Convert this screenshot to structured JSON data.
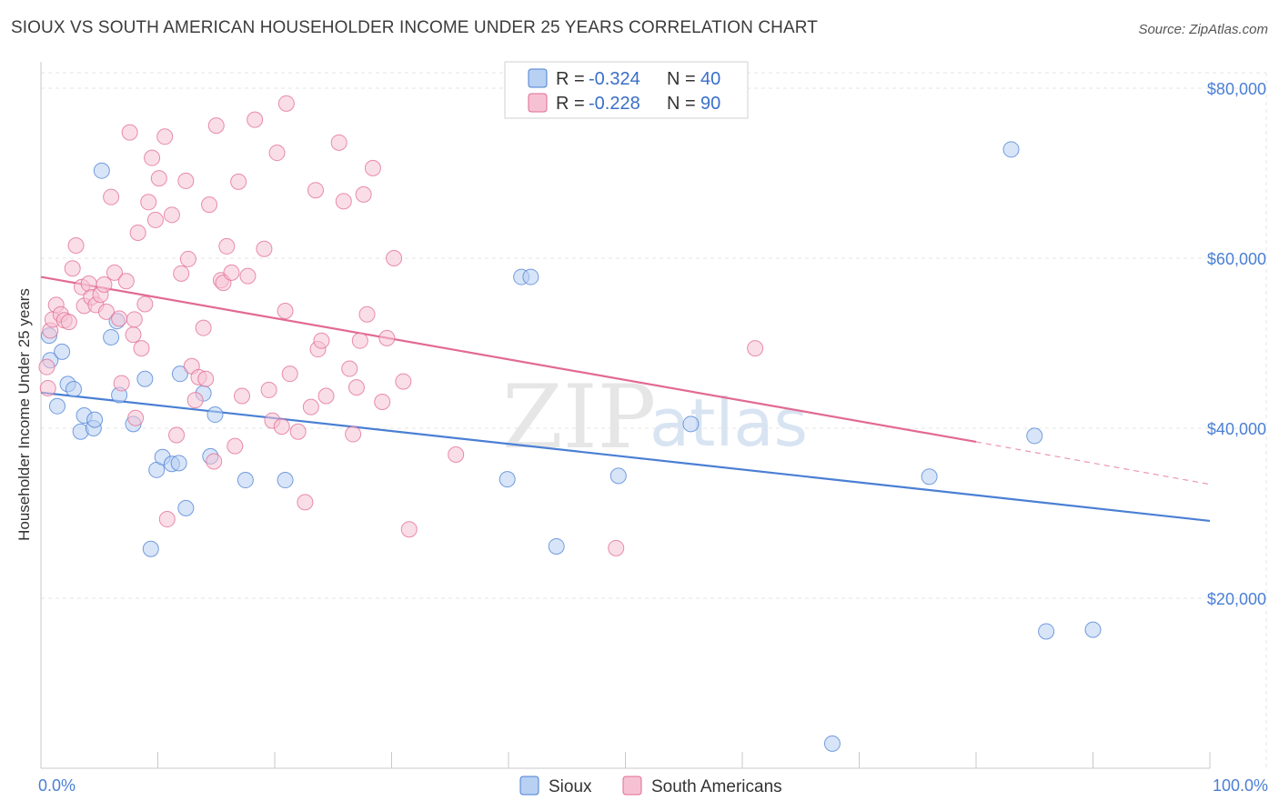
{
  "title": "SIOUX VS SOUTH AMERICAN HOUSEHOLDER INCOME UNDER 25 YEARS CORRELATION CHART",
  "source": "Source: ZipAtlas.com",
  "watermark": {
    "zip": "ZIP",
    "atlas": "atlas"
  },
  "colors": {
    "sioux": "#4a7fd4",
    "sioux_fill": "#b8d0f2",
    "south_americans": "#e26a92",
    "south_americans_fill": "#f6c2d3",
    "grid": "#e4e4e4",
    "tick_label": "#4a7fd4"
  },
  "legend": {
    "rows": [
      {
        "r_label": "R = ",
        "r_value": "-0.324",
        "n_label": "N = ",
        "n_value": "40"
      },
      {
        "r_label": "R = ",
        "r_value": "-0.228",
        "n_label": "N = ",
        "n_value": "90"
      }
    ]
  },
  "bottom_legend": [
    "Sioux",
    "South Americans"
  ],
  "chart_data": {
    "type": "scatter",
    "title": "SIOUX VS SOUTH AMERICAN HOUSEHOLDER INCOME UNDER 25 YEARS CORRELATION CHART",
    "xlabel": "",
    "ylabel": "Householder Income Under 25 years",
    "xlim": [
      0,
      100
    ],
    "ylim": [
      0,
      83000
    ],
    "x_tick_labels": [
      "0.0%",
      "100.0%"
    ],
    "y_ticks": [
      20000,
      40000,
      60000,
      80000
    ],
    "y_tick_labels": [
      "$20,000",
      "$40,000",
      "$60,000",
      "$80,000"
    ],
    "grid": true,
    "legend_position": "top-center",
    "series": [
      {
        "name": "Sioux",
        "r": -0.324,
        "n": 40,
        "trend": {
          "x": [
            0,
            100
          ],
          "y": [
            44200,
            29100
          ]
        },
        "points": [
          [
            0.7,
            50900
          ],
          [
            0.8,
            48000
          ],
          [
            1.4,
            42600
          ],
          [
            1.8,
            49000
          ],
          [
            2.3,
            45200
          ],
          [
            2.8,
            44600
          ],
          [
            3.4,
            39600
          ],
          [
            3.7,
            41500
          ],
          [
            4.5,
            40000
          ],
          [
            4.6,
            41000
          ],
          [
            5.2,
            70300
          ],
          [
            6.0,
            50700
          ],
          [
            6.5,
            52600
          ],
          [
            6.7,
            43900
          ],
          [
            7.9,
            40500
          ],
          [
            8.9,
            45800
          ],
          [
            9.4,
            25800
          ],
          [
            9.9,
            35100
          ],
          [
            10.4,
            36600
          ],
          [
            11.2,
            35800
          ],
          [
            11.8,
            35900
          ],
          [
            11.9,
            46400
          ],
          [
            12.4,
            30600
          ],
          [
            13.9,
            44100
          ],
          [
            14.5,
            36700
          ],
          [
            14.9,
            41600
          ],
          [
            17.5,
            33900
          ],
          [
            20.9,
            33900
          ],
          [
            39.9,
            34000
          ],
          [
            41.1,
            57800
          ],
          [
            41.9,
            57800
          ],
          [
            44.1,
            26100
          ],
          [
            49.4,
            34400
          ],
          [
            55.6,
            40500
          ],
          [
            76.0,
            34300
          ],
          [
            83.0,
            72800
          ],
          [
            85.0,
            39100
          ],
          [
            86.0,
            16100
          ],
          [
            90.0,
            16300
          ],
          [
            67.7,
            2900
          ]
        ]
      },
      {
        "name": "South Americans",
        "r": -0.228,
        "n": 90,
        "trend": {
          "x": [
            0,
            80
          ],
          "y": [
            57800,
            38400
          ]
        },
        "trend_dashed": {
          "x": [
            80,
            100
          ],
          "y": [
            38400,
            33400
          ]
        },
        "points": [
          [
            0.5,
            47200
          ],
          [
            0.6,
            44700
          ],
          [
            0.8,
            51500
          ],
          [
            1.0,
            52800
          ],
          [
            1.3,
            54500
          ],
          [
            1.7,
            53400
          ],
          [
            2.0,
            52700
          ],
          [
            2.4,
            52500
          ],
          [
            2.7,
            58800
          ],
          [
            3.0,
            61500
          ],
          [
            3.5,
            56600
          ],
          [
            3.7,
            54400
          ],
          [
            4.1,
            57000
          ],
          [
            4.3,
            55400
          ],
          [
            4.7,
            54500
          ],
          [
            5.1,
            55700
          ],
          [
            5.4,
            56900
          ],
          [
            5.6,
            53700
          ],
          [
            6.0,
            67200
          ],
          [
            6.3,
            58300
          ],
          [
            6.7,
            52900
          ],
          [
            6.9,
            45300
          ],
          [
            7.3,
            57300
          ],
          [
            7.6,
            74800
          ],
          [
            7.9,
            51000
          ],
          [
            8.1,
            41200
          ],
          [
            8.3,
            63000
          ],
          [
            8.6,
            49400
          ],
          [
            8.9,
            54600
          ],
          [
            9.2,
            66600
          ],
          [
            9.5,
            71800
          ],
          [
            9.8,
            64500
          ],
          [
            10.1,
            69400
          ],
          [
            10.6,
            74300
          ],
          [
            10.8,
            29300
          ],
          [
            11.2,
            65100
          ],
          [
            11.6,
            39200
          ],
          [
            12.0,
            58200
          ],
          [
            12.4,
            69100
          ],
          [
            12.6,
            59900
          ],
          [
            12.9,
            47300
          ],
          [
            13.2,
            43300
          ],
          [
            13.5,
            46000
          ],
          [
            13.9,
            51800
          ],
          [
            14.1,
            45800
          ],
          [
            14.4,
            66300
          ],
          [
            14.8,
            36100
          ],
          [
            15.0,
            75600
          ],
          [
            15.4,
            57400
          ],
          [
            15.6,
            57100
          ],
          [
            15.9,
            61400
          ],
          [
            16.3,
            58300
          ],
          [
            16.6,
            37900
          ],
          [
            16.9,
            69000
          ],
          [
            17.2,
            43800
          ],
          [
            17.7,
            57900
          ],
          [
            18.3,
            76300
          ],
          [
            19.1,
            61100
          ],
          [
            19.5,
            44500
          ],
          [
            19.8,
            40900
          ],
          [
            20.2,
            72400
          ],
          [
            20.6,
            40200
          ],
          [
            20.9,
            53800
          ],
          [
            21.3,
            46400
          ],
          [
            22.0,
            39600
          ],
          [
            22.6,
            31300
          ],
          [
            23.1,
            42500
          ],
          [
            23.5,
            68000
          ],
          [
            23.7,
            49300
          ],
          [
            24.0,
            50300
          ],
          [
            24.4,
            43800
          ],
          [
            25.5,
            73600
          ],
          [
            25.9,
            66700
          ],
          [
            26.4,
            47000
          ],
          [
            26.7,
            39300
          ],
          [
            27.0,
            44800
          ],
          [
            27.3,
            50300
          ],
          [
            27.6,
            67500
          ],
          [
            27.9,
            53400
          ],
          [
            28.4,
            70600
          ],
          [
            29.2,
            43100
          ],
          [
            29.6,
            50600
          ],
          [
            30.2,
            60000
          ],
          [
            31.0,
            45500
          ],
          [
            31.5,
            28100
          ],
          [
            35.5,
            36900
          ],
          [
            49.2,
            25900
          ],
          [
            61.1,
            49400
          ],
          [
            21.0,
            78200
          ],
          [
            8.0,
            52800
          ]
        ]
      }
    ]
  }
}
